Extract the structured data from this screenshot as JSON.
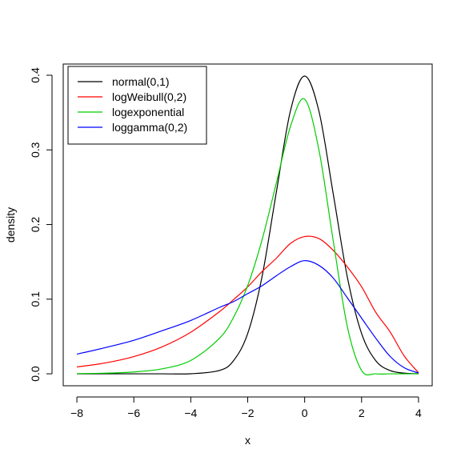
{
  "chart_data": {
    "type": "line",
    "title": "",
    "xlabel": "x",
    "ylabel": "density",
    "xlim": [
      -8.48,
      4.48
    ],
    "ylim": [
      -0.016,
      0.415
    ],
    "grid": false,
    "legend_position": "top-left",
    "x_ticks": [
      -8,
      -6,
      -4,
      -2,
      0,
      2,
      4
    ],
    "x_tick_labels": [
      "−8",
      "−6",
      "−4",
      "−2",
      "0",
      "2",
      "4"
    ],
    "y_ticks": [
      0.0,
      0.1,
      0.2,
      0.3,
      0.4
    ],
    "y_tick_labels": [
      "0.0",
      "0.1",
      "0.2",
      "0.3",
      "0.4"
    ],
    "x": [
      -8,
      -7,
      -6,
      -5,
      -4,
      -3,
      -2.5,
      -2,
      -1.5,
      -1,
      -0.5,
      0,
      0.5,
      1,
      1.5,
      2,
      2.5,
      3,
      3.5,
      4
    ],
    "series": [
      {
        "name": "normal(0,1)",
        "color": "#000000",
        "values": [
          0.0,
          0.0,
          0.0,
          0.0,
          0.0001,
          0.0044,
          0.0175,
          0.054,
          0.1295,
          0.242,
          0.3521,
          0.3989,
          0.3521,
          0.242,
          0.1295,
          0.054,
          0.0175,
          0.0044,
          0.0009,
          0.0001
        ]
      },
      {
        "name": "logWeibull(0,2)",
        "color": "#ff0000",
        "values": [
          0.0092,
          0.0146,
          0.0231,
          0.0362,
          0.0557,
          0.083,
          0.0993,
          0.1165,
          0.1368,
          0.1546,
          0.1746,
          0.1839,
          0.1812,
          0.1655,
          0.1432,
          0.1166,
          0.0823,
          0.0563,
          0.0238,
          0.0015
        ]
      },
      {
        "name": "logexponential",
        "color": "#00cd00",
        "values": [
          0.0003,
          0.0009,
          0.0025,
          0.0067,
          0.0179,
          0.0473,
          0.0755,
          0.1182,
          0.1789,
          0.2546,
          0.3311,
          0.3679,
          0.3003,
          0.1793,
          0.0631,
          0.0045,
          0.0,
          0.0,
          0.0,
          0.0
        ]
      },
      {
        "name": "loggamma(0,2)",
        "color": "#0000ff",
        "values": [
          0.0264,
          0.0351,
          0.0449,
          0.0578,
          0.0715,
          0.0888,
          0.0967,
          0.1074,
          0.1179,
          0.1312,
          0.1435,
          0.1516,
          0.1453,
          0.1285,
          0.1018,
          0.0746,
          0.0476,
          0.0234,
          0.0081,
          0.0011
        ]
      }
    ]
  }
}
